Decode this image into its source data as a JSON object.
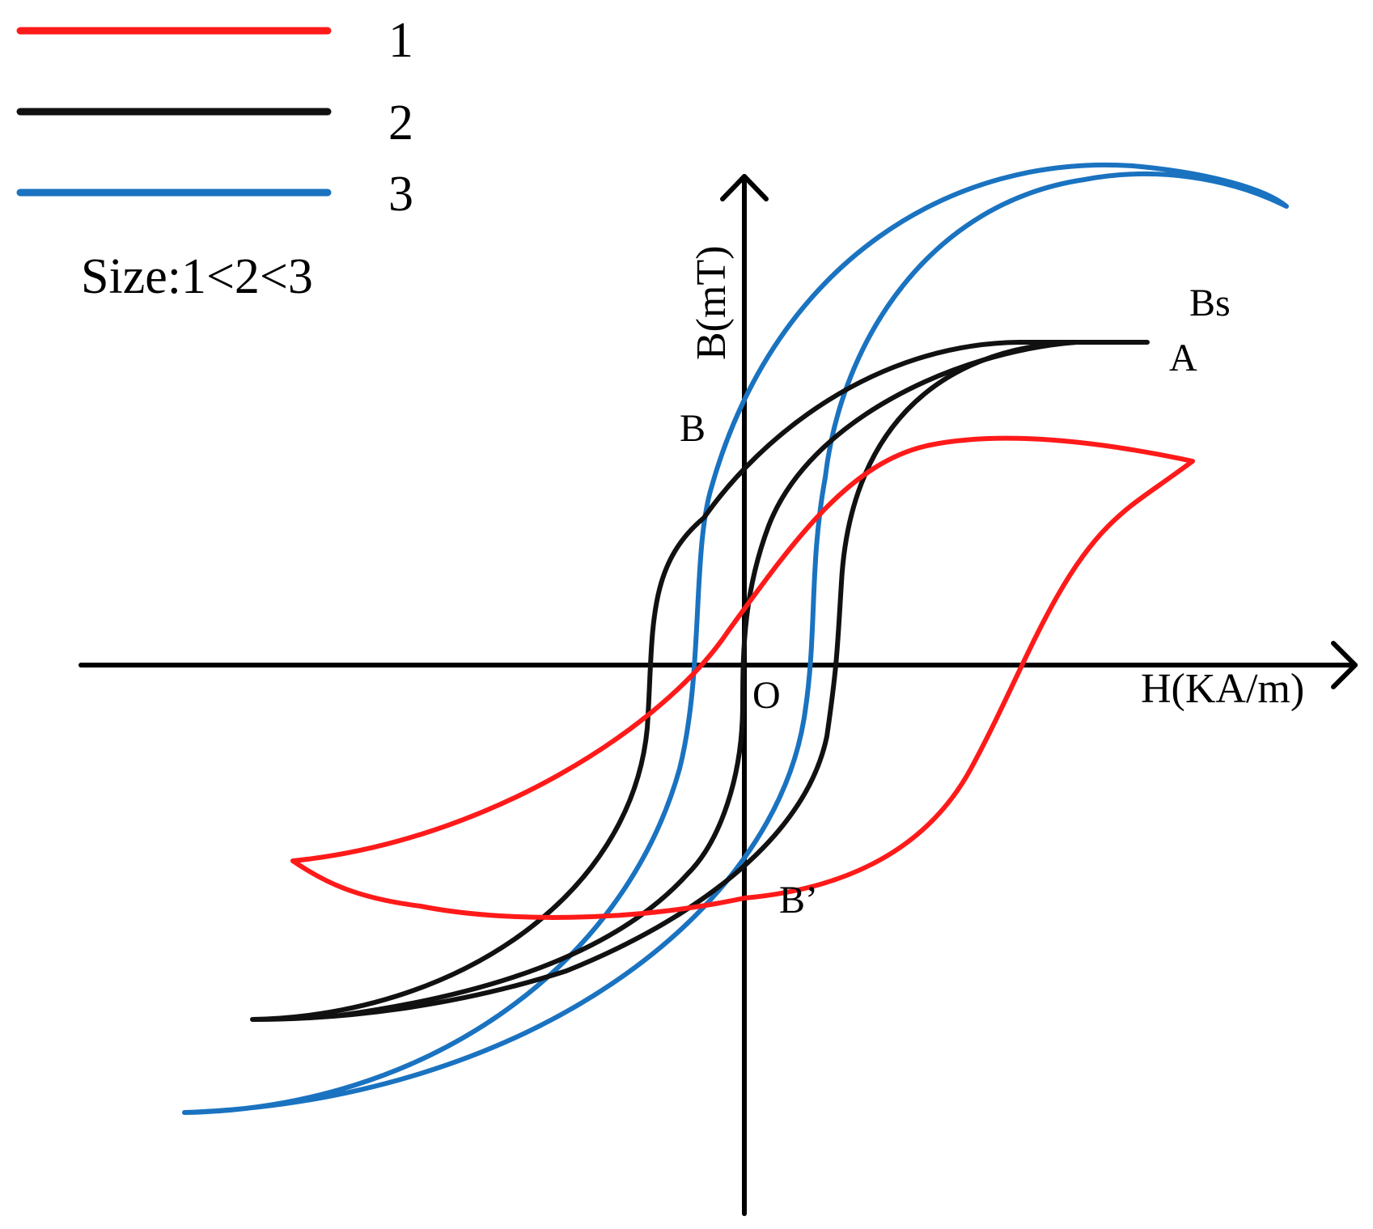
{
  "legend": {
    "items": [
      {
        "label": "1",
        "color": "#ff1a1a"
      },
      {
        "label": "2",
        "color": "#111111"
      },
      {
        "label": "3",
        "color": "#1a73c0"
      }
    ],
    "note": "Size:1<2<3"
  },
  "axes": {
    "x_label": "H(KA/m)",
    "y_label": "B(mT)",
    "origin_label": "O"
  },
  "points": {
    "bs": "Bs",
    "a": "A",
    "b": "B",
    "b_prime": "B’"
  },
  "chart_data": {
    "type": "line",
    "x_label": "H(KA/m)",
    "y_label": "B(mT)",
    "series": [
      {
        "name": "1",
        "color": "#ff1a1a"
      },
      {
        "name": "2",
        "color": "#111111"
      },
      {
        "name": "3",
        "color": "#1a73c0"
      }
    ]
  }
}
